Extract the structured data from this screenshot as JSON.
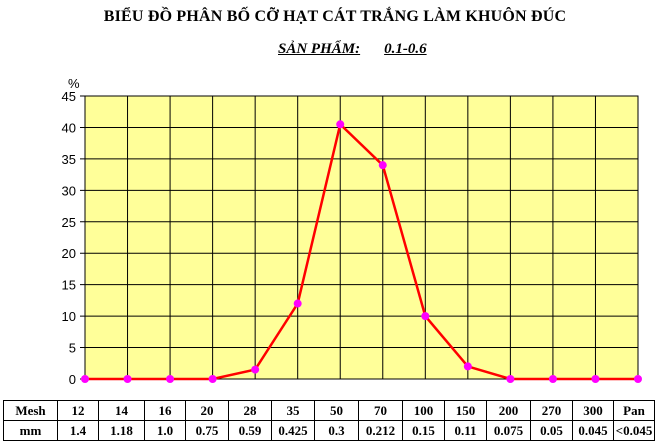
{
  "title": "BIỂU ĐỒ PHÂN BỐ CỠ HẠT CÁT TRẮNG LÀM KHUÔN ĐÚC",
  "subtitle": {
    "label": "SẢN PHẨM:",
    "value": "0.1-0.6"
  },
  "colors": {
    "plot_bg": "#FFFF99",
    "line": "#FF0000",
    "marker": "#FF00FF",
    "grid": "#000000"
  },
  "table": {
    "row_labels": [
      "Mesh",
      "mm"
    ],
    "mesh": [
      "12",
      "14",
      "16",
      "20",
      "28",
      "35",
      "50",
      "70",
      "100",
      "150",
      "200",
      "270",
      "300",
      "Pan"
    ],
    "mm": [
      "1.4",
      "1.18",
      "1.0",
      "0.75",
      "0.59",
      "0.425",
      "0.3",
      "0.212",
      "0.15",
      "0.11",
      "0.075",
      "0.05",
      "0.045",
      "<0.045"
    ]
  },
  "chart_data": {
    "type": "line",
    "title": "BIỂU ĐỒ PHÂN BỐ CỠ HẠT CÁT TRẮNG LÀM KHUÔN ĐÚC",
    "ylabel": "%",
    "ylim": [
      0,
      45
    ],
    "yticks": [
      0,
      5,
      10,
      15,
      20,
      25,
      30,
      35,
      40,
      45
    ],
    "grid": true,
    "categories": [
      "12",
      "14",
      "16",
      "20",
      "28",
      "35",
      "50",
      "70",
      "100",
      "150",
      "200",
      "270",
      "300",
      "Pan"
    ],
    "values": [
      0,
      0,
      0,
      0,
      1.5,
      12,
      40.5,
      34,
      10,
      2,
      0,
      0,
      0,
      0
    ]
  }
}
